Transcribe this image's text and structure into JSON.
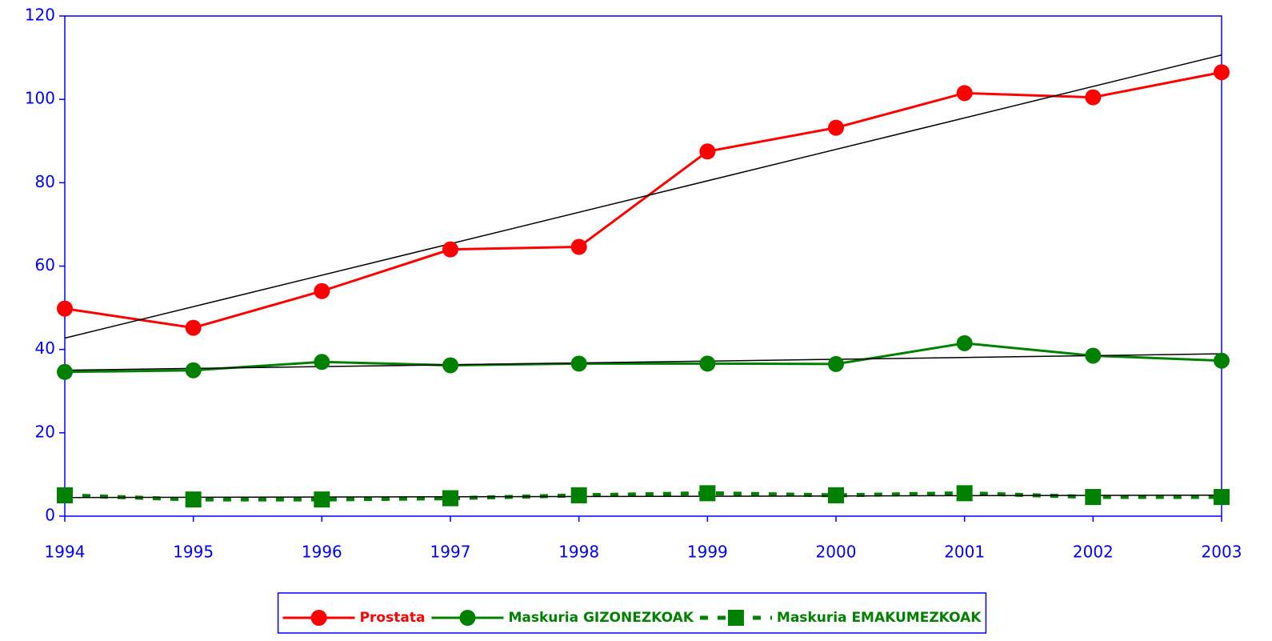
{
  "chart_data": {
    "type": "line",
    "x": [
      1994,
      1995,
      1996,
      1997,
      1998,
      1999,
      2000,
      2001,
      2002,
      2003
    ],
    "xlim": [
      1994,
      2003
    ],
    "xticks": [
      1994,
      1995,
      1996,
      1997,
      1998,
      1999,
      2000,
      2001,
      2002,
      2003
    ],
    "ylim": [
      0,
      120
    ],
    "yticks": [
      0,
      20,
      40,
      60,
      80,
      100,
      120
    ],
    "trendline": true,
    "legend": "bottom",
    "series": [
      {
        "name": "Prostata",
        "color": "#ff0000",
        "marker": "circle",
        "dash": false,
        "values": [
          49.8,
          45.2,
          54,
          64,
          64.6,
          87.5,
          93.2,
          101.5,
          100.5,
          106.5
        ]
      },
      {
        "name": "Maskuria GIZONEZKOAK",
        "color": "#008000",
        "marker": "circle",
        "dash": false,
        "values": [
          34.6,
          35,
          37,
          36.2,
          36.6,
          36.6,
          36.5,
          41.5,
          38.5,
          37.3
        ]
      },
      {
        "name": "Maskuria EMAKUMEZKOAK",
        "color": "#008000",
        "marker": "square",
        "dash": true,
        "values": [
          5,
          4,
          4,
          4.3,
          5,
          5.5,
          5,
          5.5,
          4.6,
          4.6
        ]
      }
    ]
  }
}
